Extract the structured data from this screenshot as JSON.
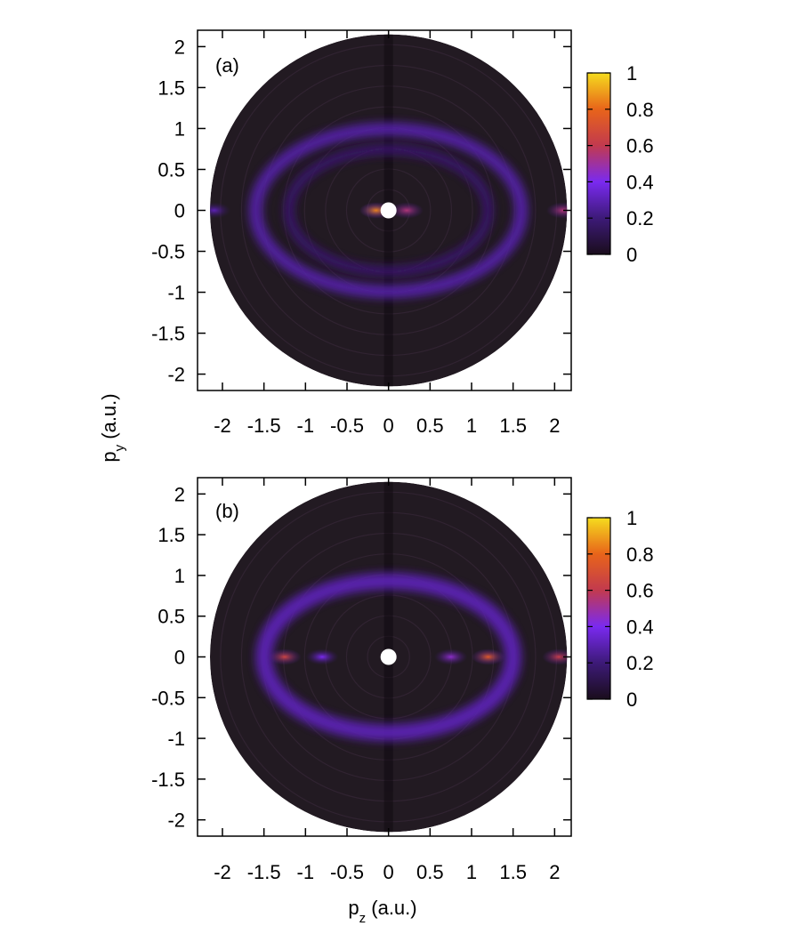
{
  "figure": {
    "ylabel": {
      "main": "p",
      "sub": "y",
      "unit": " (a.u.)"
    },
    "xlabel": {
      "main": "p",
      "sub": "z",
      "unit": " (a.u.)"
    }
  },
  "colorbar": {
    "ticks": [
      0,
      0.2,
      0.4,
      0.6,
      0.8,
      1
    ],
    "tick_labels": [
      "0",
      "0.2",
      "0.4",
      "0.6",
      "0.8",
      "1"
    ],
    "colormap": [
      "#1a0d1c",
      "#3d1a78",
      "#7a2af0",
      "#c23a4e",
      "#e8641a",
      "#f5dc1e"
    ]
  },
  "chart_data": [
    {
      "type": "heatmap",
      "panel_label": "(a)",
      "panel_label_color": "#33e600",
      "xlabel": "p_z (a.u.)",
      "ylabel": "p_y (a.u.)",
      "xlim": [
        -2.3,
        2.2
      ],
      "ylim": [
        -2.2,
        2.2
      ],
      "x_ticks": [
        -2,
        -1.5,
        -1,
        -0.5,
        0,
        0.5,
        1,
        1.5,
        2
      ],
      "x_tick_labels": [
        "-2",
        "-1.5",
        "-1",
        "-0.5",
        "0",
        "0.5",
        "1",
        "1.5",
        "2"
      ],
      "y_ticks": [
        2,
        1.5,
        1,
        0.5,
        0,
        -0.5,
        -1,
        -1.5,
        -2
      ],
      "y_tick_labels": [
        "2",
        "1.5",
        "1",
        "0.5",
        "0",
        "-0.5",
        "-1",
        "-1.5",
        "-2"
      ],
      "value_range": [
        0,
        1
      ],
      "disk_radius": 2.15,
      "background_color": "#221a22",
      "features": [
        {
          "kind": "ring",
          "p": 1.6,
          "width": 0.16,
          "intensity": 0.28
        },
        {
          "kind": "ring",
          "p": 1.2,
          "width": 0.12,
          "intensity": 0.18
        },
        {
          "kind": "spot",
          "pz": -0.15,
          "py": 0,
          "intensity": 0.85
        },
        {
          "kind": "spot",
          "pz": 0.22,
          "py": 0,
          "intensity": 0.55
        },
        {
          "kind": "spot",
          "pz": 2.1,
          "py": 0,
          "intensity": 0.55
        },
        {
          "kind": "spot",
          "pz": -2.1,
          "py": 0,
          "intensity": 0.3
        }
      ]
    },
    {
      "type": "heatmap",
      "panel_label": "(b)",
      "panel_label_color": "#33e600",
      "xlabel": "p_z (a.u.)",
      "ylabel": "p_y (a.u.)",
      "xlim": [
        -2.3,
        2.2
      ],
      "ylim": [
        -2.2,
        2.2
      ],
      "x_ticks": [
        -2,
        -1.5,
        -1,
        -0.5,
        0,
        0.5,
        1,
        1.5,
        2
      ],
      "x_tick_labels": [
        "-2",
        "-1.5",
        "-1",
        "-0.5",
        "0",
        "0.5",
        "1",
        "1.5",
        "2"
      ],
      "y_ticks": [
        2,
        1.5,
        1,
        0.5,
        0,
        -0.5,
        -1,
        -1.5,
        -2
      ],
      "y_tick_labels": [
        "2",
        "1.5",
        "1",
        "0.5",
        "0",
        "-0.5",
        "-1",
        "-1.5",
        "-2"
      ],
      "value_range": [
        0,
        1
      ],
      "disk_radius": 2.15,
      "background_color": "#221a22",
      "features": [
        {
          "kind": "ring",
          "p": 1.5,
          "width": 0.2,
          "intensity": 0.3
        },
        {
          "kind": "spot",
          "pz": -1.25,
          "py": 0,
          "intensity": 0.65
        },
        {
          "kind": "spot",
          "pz": -0.8,
          "py": 0,
          "intensity": 0.4
        },
        {
          "kind": "spot",
          "pz": 0.75,
          "py": 0,
          "intensity": 0.45
        },
        {
          "kind": "spot",
          "pz": 1.2,
          "py": 0,
          "intensity": 0.75
        },
        {
          "kind": "spot",
          "pz": 2.05,
          "py": 0,
          "intensity": 0.62
        }
      ]
    }
  ]
}
